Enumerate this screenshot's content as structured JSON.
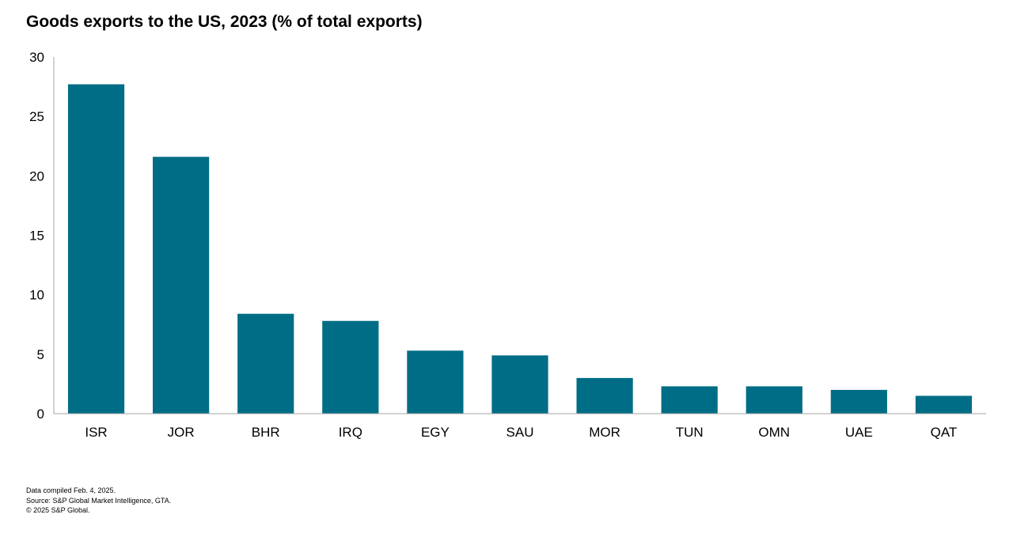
{
  "chart_data": {
    "type": "bar",
    "title": "Goods exports to the US, 2023 (% of total exports)",
    "xlabel": "",
    "ylabel": "",
    "categories": [
      "ISR",
      "JOR",
      "BHR",
      "IRQ",
      "EGY",
      "SAU",
      "MOR",
      "TUN",
      "OMN",
      "UAE",
      "QAT"
    ],
    "values": [
      27.7,
      21.6,
      8.4,
      7.8,
      5.3,
      4.9,
      3.0,
      2.3,
      2.3,
      2.0,
      1.5
    ],
    "ylim": [
      0,
      30
    ],
    "yticks": [
      "0",
      "5",
      "10",
      "15",
      "20",
      "25",
      "30"
    ],
    "bar_color": "#006d86",
    "grid": false,
    "legend": "none"
  },
  "footnotes": {
    "line1": "Data compiled Feb. 4, 2025.",
    "line2": "Source: S&P Global Market Intelligence, GTA.",
    "line3": "© 2025 S&P Global."
  }
}
